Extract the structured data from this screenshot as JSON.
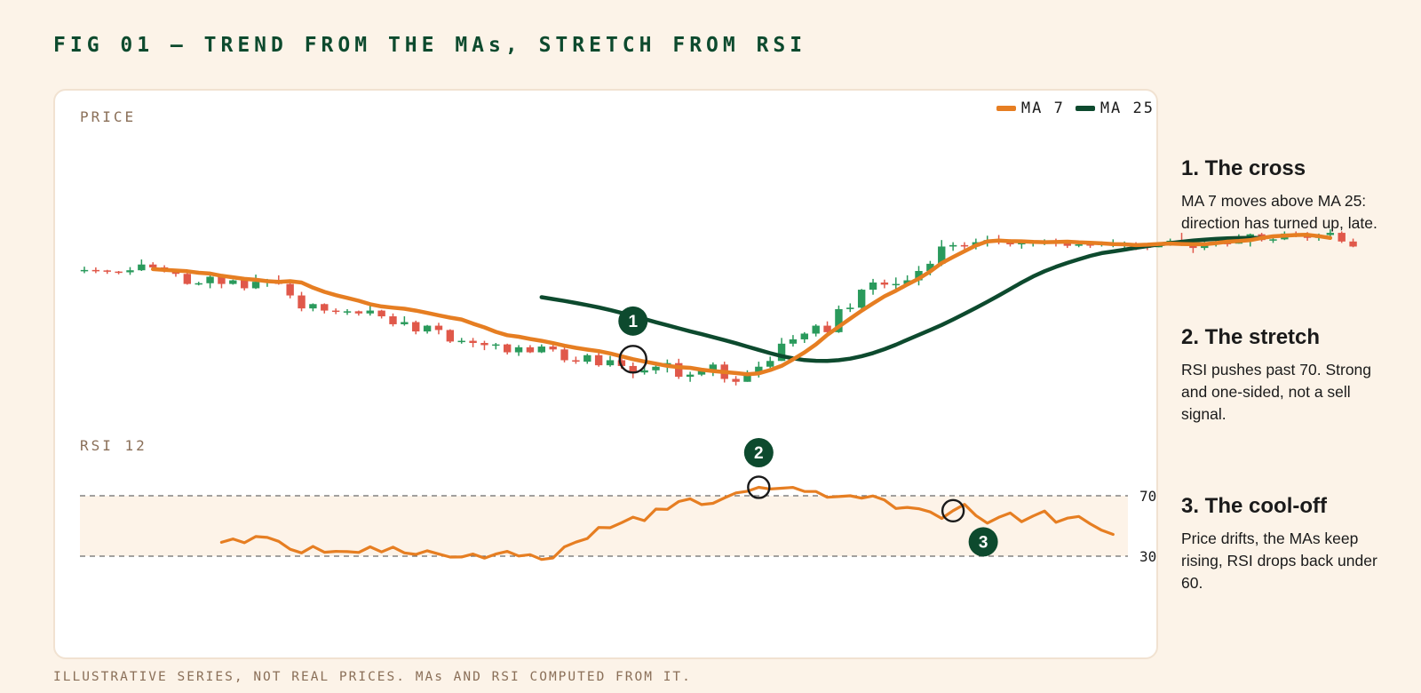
{
  "title": "FIG 01 – TREND FROM THE MAs, STRETCH FROM RSI",
  "footnote": "ILLUSTRATIVE SERIES, NOT REAL PRICES. MAs AND RSI COMPUTED FROM IT.",
  "colors": {
    "up": "#2a9a5c",
    "down": "#e0584a",
    "ma7": "#e67e22",
    "ma25": "#0d4a2e",
    "rsi": "#e67e22",
    "band": "#fdf3e8",
    "marker": "#0d4a2e"
  },
  "notes": [
    {
      "title": "1. The cross",
      "text": "MA 7 moves above MA 25: direction has turned up, late."
    },
    {
      "title": "2. The stretch",
      "text": "RSI pushes past 70. Strong and one-sided, not a sell signal."
    },
    {
      "title": "3. The cool-off",
      "text": "Price drifts, the MAs keep rising, RSI drops back under 60."
    }
  ],
  "chart_data": [
    {
      "type": "candlestick",
      "panel_label": "PRICE",
      "legend": [
        "MA 7",
        "MA 25"
      ],
      "candles": [
        [
          40.0,
          40.2,
          42.5,
          38.0
        ],
        [
          40.2,
          39.9,
          42.0,
          38.0
        ],
        [
          39.9,
          39.1,
          40.3,
          37.5
        ],
        [
          39.1,
          38.6,
          39.5,
          37.2
        ],
        [
          38.6,
          40.0,
          42.2,
          36.8
        ],
        [
          40.0,
          44.0,
          47.5,
          39.5
        ],
        [
          44.0,
          42.0,
          45.6,
          41.0
        ],
        [
          42.0,
          40.0,
          43.5,
          38.5
        ],
        [
          40.0,
          37.5,
          40.5,
          35.5
        ],
        [
          37.5,
          30.5,
          38.0,
          30.0
        ],
        [
          30.5,
          31.0,
          32.0,
          29.5
        ],
        [
          31.0,
          35.5,
          37.0,
          27.5
        ],
        [
          35.5,
          30.5,
          36.0,
          27.5
        ],
        [
          30.5,
          33.0,
          33.5,
          30.0
        ],
        [
          33.0,
          27.5,
          34.0,
          26.0
        ],
        [
          27.5,
          32.0,
          37.0,
          27.0
        ],
        [
          32.0,
          32.5,
          34.0,
          28.5
        ],
        [
          32.5,
          30.5,
          36.5,
          30.0
        ],
        [
          30.5,
          22.5,
          32.0,
          20.5
        ],
        [
          22.5,
          13.5,
          25.0,
          11.5
        ],
        [
          13.5,
          16.5,
          17.0,
          11.5
        ],
        [
          16.5,
          12.0,
          17.0,
          10.0
        ],
        [
          12.0,
          11.5,
          13.5,
          9.5
        ],
        [
          11.5,
          11.5,
          13.0,
          9.0
        ],
        [
          11.5,
          10.0,
          12.0,
          8.5
        ],
        [
          10.0,
          12.0,
          15.5,
          8.5
        ],
        [
          12.0,
          8.0,
          12.5,
          6.5
        ],
        [
          8.0,
          2.5,
          10.0,
          1.0
        ],
        [
          2.5,
          4.0,
          8.0,
          1.5
        ],
        [
          4.0,
          -2.5,
          5.0,
          -4.5
        ],
        [
          -2.5,
          1.5,
          2.0,
          -4.0
        ],
        [
          1.5,
          -1.5,
          3.5,
          -4.5
        ],
        [
          -1.5,
          -9.5,
          -1.0,
          -10.5
        ],
        [
          -9.5,
          -9.0,
          -7.0,
          -11.0
        ],
        [
          -9.0,
          -10.5,
          -7.0,
          -13.5
        ],
        [
          -10.5,
          -12.0,
          -9.0,
          -15.5
        ],
        [
          -12.0,
          -11.5,
          -10.5,
          -15.0
        ],
        [
          -11.5,
          -17.0,
          -11.0,
          -18.5
        ],
        [
          -17.0,
          -13.5,
          -12.0,
          -19.5
        ],
        [
          -13.5,
          -17.0,
          -12.0,
          -17.5
        ],
        [
          -17.0,
          -13.0,
          -11.5,
          -17.5
        ],
        [
          -13.0,
          -15.0,
          -12.0,
          -16.5
        ],
        [
          -15.0,
          -22.5,
          -12.5,
          -24.0
        ],
        [
          -22.5,
          -23.5,
          -20.0,
          -25.0
        ],
        [
          -23.5,
          -19.0,
          -18.0,
          -25.0
        ],
        [
          -19.0,
          -26.0,
          -17.0,
          -27.0
        ],
        [
          -26.0,
          -22.5,
          -19.5,
          -27.0
        ],
        [
          -22.5,
          -26.5,
          -21.0,
          -28.5
        ],
        [
          -26.5,
          -31.0,
          -24.0,
          -35.0
        ],
        [
          -31.0,
          -29.5,
          -26.5,
          -32.5
        ],
        [
          -29.5,
          -27.0,
          -25.0,
          -32.0
        ],
        [
          -27.0,
          -24.5,
          -22.0,
          -31.0
        ],
        [
          -24.5,
          -34.0,
          -21.5,
          -35.5
        ],
        [
          -34.0,
          -32.5,
          -30.5,
          -37.5
        ],
        [
          -32.5,
          -29.5,
          -28.5,
          -33.5
        ],
        [
          -29.5,
          -25.5,
          -24.0,
          -33.5
        ],
        [
          -25.5,
          -35.5,
          -23.5,
          -38.0
        ],
        [
          -35.5,
          -37.5,
          -33.5,
          -40.0
        ],
        [
          -37.5,
          -31.5,
          -29.5,
          -37.5
        ],
        [
          -31.5,
          -27.0,
          -23.5,
          -34.5
        ],
        [
          -27.0,
          -23.0,
          -20.0,
          -30.0
        ],
        [
          -23.0,
          -11.0,
          -7.0,
          -23.0
        ],
        [
          -11.0,
          -8.0,
          -5.0,
          -13.0
        ],
        [
          -8.0,
          -4.0,
          -3.0,
          -10.5
        ],
        [
          -4.0,
          1.5,
          2.5,
          -6.0
        ],
        [
          1.5,
          -3.0,
          4.5,
          -4.0
        ],
        [
          -3.0,
          13.0,
          15.5,
          -3.5
        ],
        [
          13.0,
          14.0,
          17.0,
          11.0
        ],
        [
          14.0,
          26.5,
          27.0,
          12.0
        ],
        [
          26.5,
          31.5,
          34.0,
          23.0
        ],
        [
          31.5,
          30.0,
          33.5,
          27.5
        ],
        [
          30.0,
          30.5,
          35.0,
          27.0
        ],
        [
          30.5,
          33.0,
          36.5,
          32.0
        ],
        [
          33.0,
          39.5,
          43.0,
          29.5
        ],
        [
          39.5,
          44.5,
          46.5,
          36.5
        ],
        [
          44.5,
          56.5,
          61.0,
          43.0
        ],
        [
          56.5,
          57.5,
          59.5,
          53.5
        ],
        [
          57.5,
          56.5,
          59.5,
          54.0
        ],
        [
          56.5,
          59.5,
          62.0,
          54.5
        ],
        [
          59.5,
          61.0,
          64.0,
          56.5
        ],
        [
          61.0,
          60.0,
          64.5,
          58.0
        ],
        [
          60.0,
          58.0,
          61.5,
          56.5
        ],
        [
          58.0,
          59.0,
          61.0,
          55.0
        ],
        [
          59.0,
          59.5,
          61.0,
          56.5
        ],
        [
          59.5,
          60.5,
          61.5,
          57.5
        ],
        [
          60.5,
          59.5,
          62.0,
          56.5
        ],
        [
          59.5,
          57.0,
          61.0,
          55.5
        ],
        [
          57.0,
          58.0,
          60.0,
          56.0
        ],
        [
          58.0,
          57.5,
          59.5,
          55.5
        ],
        [
          57.5,
          58.5,
          60.0,
          56.5
        ],
        [
          58.5,
          58.5,
          61.5,
          56.0
        ],
        [
          58.5,
          58.5,
          60.0,
          55.5
        ],
        [
          58.5,
          56.5,
          59.5,
          54.0
        ],
        [
          56.5,
          56.0,
          57.5,
          54.0
        ],
        [
          56.0,
          59.0,
          59.5,
          56.0
        ],
        [
          59.0,
          60.5,
          62.0,
          57.0
        ],
        [
          60.5,
          58.0,
          66.0,
          57.0
        ],
        [
          58.0,
          55.5,
          60.5,
          52.0
        ],
        [
          55.5,
          58.0,
          60.5,
          54.0
        ],
        [
          58.0,
          59.0,
          62.0,
          56.5
        ],
        [
          59.0,
          58.5,
          60.5,
          56.5
        ],
        [
          58.5,
          61.0,
          65.0,
          58.5
        ],
        [
          61.0,
          65.0,
          65.5,
          56.5
        ],
        [
          65.0,
          61.0,
          66.0,
          60.0
        ],
        [
          61.0,
          61.5,
          64.5,
          59.0
        ],
        [
          61.5,
          65.5,
          67.0,
          61.0
        ],
        [
          65.5,
          63.5,
          67.0,
          63.0
        ],
        [
          63.5,
          62.5,
          66.5,
          60.5
        ],
        [
          62.5,
          64.5,
          65.5,
          60.5
        ],
        [
          64.5,
          66.0,
          68.5,
          61.5
        ],
        [
          66.0,
          60.0,
          67.0,
          59.0
        ],
        [
          60.0,
          56.5,
          62.0,
          56.0
        ]
      ],
      "ma7": [
        40.8,
        40.3,
        39.8,
        39.3,
        38.3,
        37.7,
        36.2,
        35.1,
        34.0,
        33.4,
        32.4,
        32.0,
        32.4,
        31.5,
        27.9,
        25.0,
        22.7,
        20.8,
        18.8,
        16.4,
        14.9,
        14.0,
        13.3,
        12.0,
        10.4,
        8.7,
        7.1,
        5.8,
        2.9,
        0.3,
        -2.8,
        -5.1,
        -6.2,
        -7.7,
        -9.0,
        -10.6,
        -12.4,
        -13.9,
        -15.1,
        -16.2,
        -17.8,
        -19.8,
        -21.8,
        -23.4,
        -24.9,
        -26.4,
        -27.3,
        -27.8,
        -29.1,
        -30.0,
        -30.7,
        -31.4,
        -32.2,
        -31.6,
        -29.3,
        -26.4,
        -21.9,
        -17.1,
        -11.5,
        -4.9,
        0.8,
        6.4,
        11.9,
        17.0,
        21.9,
        25.8,
        30.1,
        34.2,
        39.2,
        45.0,
        49.2,
        53.3,
        57.3,
        60.0,
        60.6,
        60.2,
        60.1,
        59.7,
        59.5,
        59.6,
        59.9,
        59.4,
        59.1,
        58.7,
        58.2,
        58.0,
        57.5,
        57.8,
        58.3,
        58.6,
        58.3,
        58.1,
        58.1,
        58.9,
        59.9,
        60.3,
        60.9,
        62.5,
        63.6,
        64.0,
        64.5,
        64.6,
        63.7,
        62.5
      ],
      "ma25": [
        21.3,
        20.0,
        18.7,
        17.3,
        15.8,
        14.2,
        12.4,
        10.4,
        8.3,
        6.1,
        3.9,
        1.8,
        -0.3,
        -2.4,
        -4.4,
        -6.4,
        -8.5,
        -10.7,
        -13.0,
        -15.3,
        -17.6,
        -19.6,
        -21.2,
        -22.4,
        -22.9,
        -23.0,
        -22.5,
        -21.4,
        -19.7,
        -17.5,
        -14.8,
        -11.7,
        -8.3,
        -4.9,
        -1.5,
        2.0,
        5.8,
        9.8,
        13.9,
        18.1,
        22.5,
        27.0,
        31.5,
        35.7,
        39.3,
        42.4,
        45.1,
        47.6,
        50.0,
        51.9,
        53.1,
        54.3,
        55.6,
        56.8,
        57.9,
        58.9,
        59.8,
        60.6,
        61.3,
        61.8,
        62.2,
        62.4,
        62.5,
        62.4
      ],
      "ma25_start_index": 40
    },
    {
      "type": "line",
      "panel_label": "RSI 12",
      "ylim": [
        30,
        70
      ],
      "thresholds": [
        70,
        30
      ],
      "rsi_start_index": 12,
      "rsi": [
        39.2,
        41.4,
        38.9,
        43.0,
        42.4,
        39.8,
        34.6,
        32.2,
        36.5,
        32.6,
        33.2,
        33.0,
        32.5,
        36.2,
        32.8,
        36.0,
        32.2,
        31.2,
        33.6,
        31.4,
        29.4,
        29.5,
        31.4,
        28.7,
        31.4,
        33.2,
        30.1,
        31.0,
        27.8,
        28.8,
        36.2,
        39.3,
        41.7,
        49.0,
        48.8,
        52.2,
        55.8,
        53.5,
        61.2,
        61.0,
        66.2,
        68.0,
        64.2,
        65.0,
        68.6,
        71.9,
        73.0,
        75.6,
        74.5,
        75.0,
        75.5,
        72.9,
        72.8,
        69.0,
        69.5,
        70.0,
        68.4,
        69.9,
        67.2,
        61.6,
        62.3,
        61.4,
        59.3,
        55.0,
        60.1,
        64.3,
        56.9,
        51.9,
        55.7,
        58.6,
        52.8,
        56.6,
        59.9,
        52.4,
        55.2,
        56.3,
        51.4,
        47.2,
        44.4
      ]
    }
  ],
  "markers": [
    {
      "label": "1",
      "series": "cross",
      "index": 48
    },
    {
      "label": "2",
      "series": "rsi_peak",
      "index": 59
    },
    {
      "label": "3",
      "series": "rsi_cool",
      "index": 76
    }
  ]
}
